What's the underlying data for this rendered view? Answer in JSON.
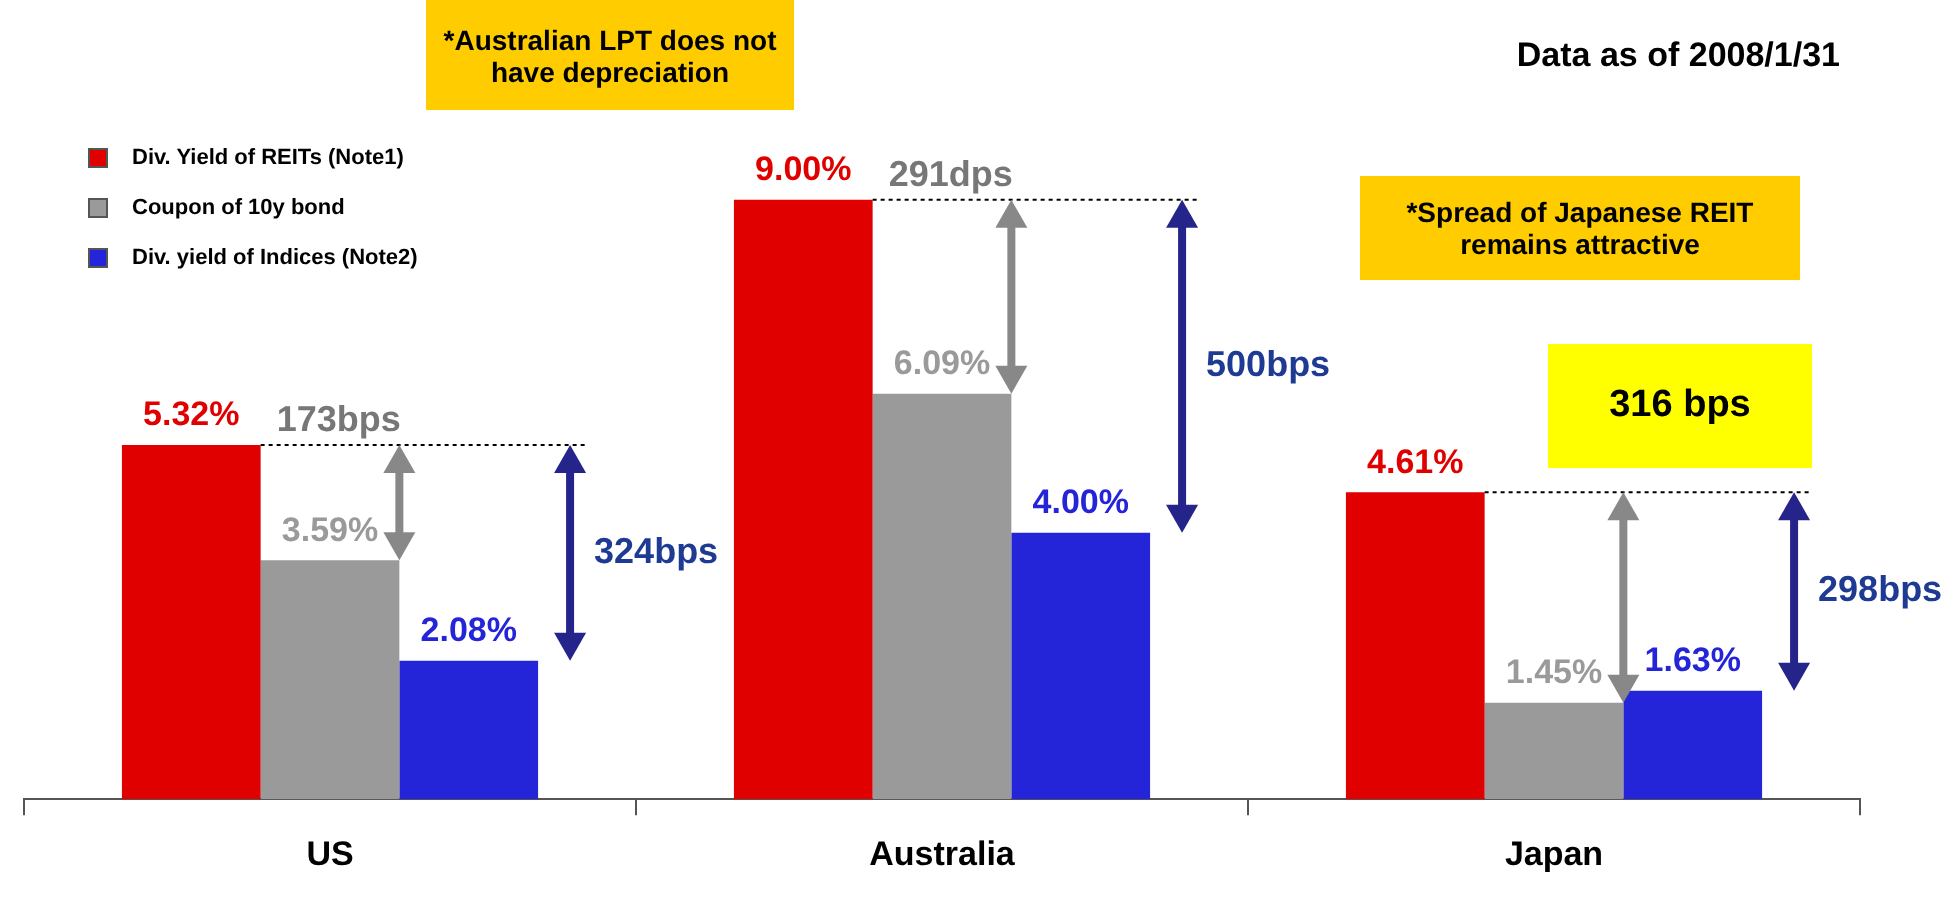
{
  "chart_data": {
    "type": "bar",
    "title": "Data as of 2008/1/31",
    "categories": [
      "US",
      "Australia",
      "Japan"
    ],
    "series": [
      {
        "name": "Div. Yield of REITs (Note1)",
        "color": "#e00000",
        "values": [
          5.32,
          9.0,
          4.61
        ],
        "value_labels": [
          "5.32%",
          "9.00%",
          "4.61%"
        ]
      },
      {
        "name": "Coupon of 10y bond",
        "color": "#9a9a9a",
        "values": [
          3.59,
          6.09,
          1.45
        ],
        "value_labels": [
          "3.59%",
          "6.09%",
          "1.45%"
        ]
      },
      {
        "name": "Div. yield of Indices (Note2)",
        "color": "#2424d8",
        "values": [
          2.08,
          4.0,
          1.63
        ],
        "value_labels": [
          "2.08%",
          "4.00%",
          "1.63%"
        ]
      }
    ],
    "annotations": [
      "173bps",
      "324bps",
      "291dps",
      "500bps",
      "298bps",
      "*Australian LPT does not have depreciation",
      "*Spread of Japanese REIT remains attractive",
      "316 bps"
    ],
    "legend": "top left",
    "grid": false
  }
}
